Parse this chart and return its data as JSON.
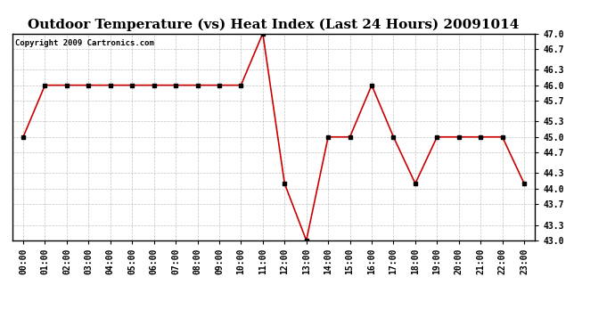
{
  "title": "Outdoor Temperature (vs) Heat Index (Last 24 Hours) 20091014",
  "copyright": "Copyright 2009 Cartronics.com",
  "x_labels": [
    "00:00",
    "01:00",
    "02:00",
    "03:00",
    "04:00",
    "05:00",
    "06:00",
    "07:00",
    "08:00",
    "09:00",
    "10:00",
    "11:00",
    "12:00",
    "13:00",
    "14:00",
    "15:00",
    "16:00",
    "17:00",
    "18:00",
    "19:00",
    "20:00",
    "21:00",
    "22:00",
    "23:00"
  ],
  "y_values": [
    45.0,
    46.0,
    46.0,
    46.0,
    46.0,
    46.0,
    46.0,
    46.0,
    46.0,
    46.0,
    46.0,
    47.0,
    44.1,
    43.0,
    45.0,
    45.0,
    46.0,
    45.0,
    44.1,
    45.0,
    45.0,
    45.0,
    45.0,
    44.1
  ],
  "ylim_min": 43.0,
  "ylim_max": 47.0,
  "line_color": "#cc0000",
  "marker": "s",
  "marker_size": 2.5,
  "marker_color": "#000000",
  "bg_color": "#ffffff",
  "grid_color": "#aaaaaa",
  "title_fontsize": 11,
  "copyright_fontsize": 6.5,
  "tick_fontsize": 7,
  "ytick_vals": [
    43.0,
    43.3,
    43.7,
    44.0,
    44.3,
    44.7,
    45.0,
    45.3,
    45.7,
    46.0,
    46.3,
    46.7,
    47.0
  ],
  "ytick_labels": [
    "43.0",
    "43.3",
    "43.7",
    "44.0",
    "44.3",
    "44.7",
    "45.0",
    "45.3",
    "45.7",
    "46.0",
    "46.3",
    "46.7",
    "47.0"
  ]
}
